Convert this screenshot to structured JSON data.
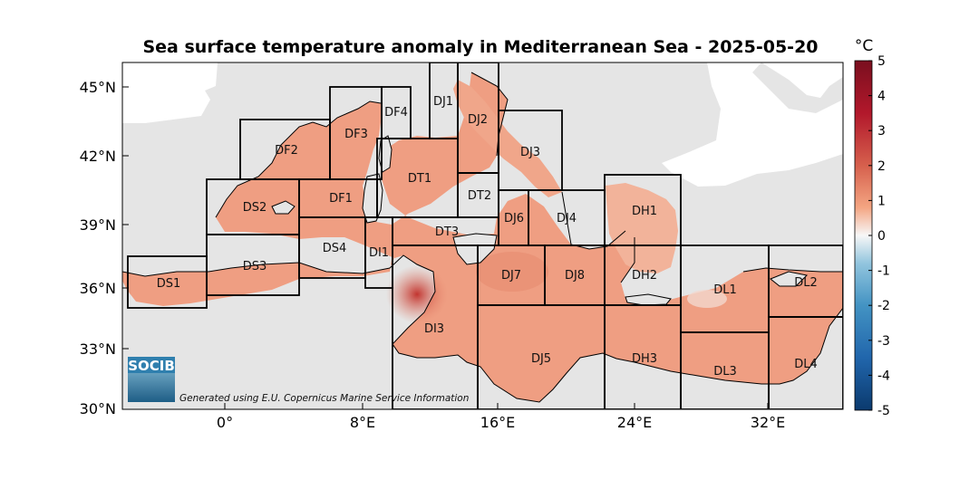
{
  "title": "Sea surface temperature anomaly in Mediterranean Sea - 2025-05-20",
  "units": "°C",
  "colorbar": {
    "ticks": [
      "5",
      "4",
      "3",
      "2",
      "1",
      "0",
      "-1",
      "-2",
      "-3",
      "-4",
      "-5"
    ],
    "min": -5,
    "max": 5,
    "colors": {
      "high": "#7a0f1f",
      "warm": "#d6604d",
      "light_warm": "#f4a582",
      "neutral": "#f7f7f7",
      "light_cool": "#92c5de",
      "cool": "#4393c3",
      "low": "#0b3a6e"
    }
  },
  "axes": {
    "lat_labels": [
      "45°N",
      "42°N",
      "39°N",
      "36°N",
      "33°N",
      "30°N"
    ],
    "lon_labels": [
      "0°",
      "8°E",
      "16°E",
      "24°E",
      "32°E"
    ]
  },
  "regions": [
    {
      "id": "DS1",
      "label": "DS1"
    },
    {
      "id": "DS2",
      "label": "DS2"
    },
    {
      "id": "DS3",
      "label": "DS3"
    },
    {
      "id": "DS4",
      "label": "DS4"
    },
    {
      "id": "DF1",
      "label": "DF1"
    },
    {
      "id": "DF2",
      "label": "DF2"
    },
    {
      "id": "DF3",
      "label": "DF3"
    },
    {
      "id": "DF4",
      "label": "DF4"
    },
    {
      "id": "DI1",
      "label": "DI1"
    },
    {
      "id": "DI3",
      "label": "DI3"
    },
    {
      "id": "DT1",
      "label": "DT1"
    },
    {
      "id": "DT2",
      "label": "DT2"
    },
    {
      "id": "DT3",
      "label": "DT3"
    },
    {
      "id": "DJ1",
      "label": "DJ1"
    },
    {
      "id": "DJ2",
      "label": "DJ2"
    },
    {
      "id": "DJ3",
      "label": "DJ3"
    },
    {
      "id": "DJ4",
      "label": "DJ4"
    },
    {
      "id": "DJ5",
      "label": "DJ5"
    },
    {
      "id": "DJ6",
      "label": "DJ6"
    },
    {
      "id": "DJ7",
      "label": "DJ7"
    },
    {
      "id": "DJ8",
      "label": "DJ8"
    },
    {
      "id": "DH1",
      "label": "DH1"
    },
    {
      "id": "DH2",
      "label": "DH2"
    },
    {
      "id": "DH3",
      "label": "DH3"
    },
    {
      "id": "DL1",
      "label": "DL1"
    },
    {
      "id": "DL2",
      "label": "DL2"
    },
    {
      "id": "DL3",
      "label": "DL3"
    },
    {
      "id": "DL4",
      "label": "DL4"
    }
  ],
  "credit": "Generated using E.U. Copernicus Marine Service Information",
  "logo_text": "SOCIB",
  "map_colors": {
    "land_grid": "#e5e5e5",
    "europe_outside": "#ffffff",
    "sea_anomaly": "#ef9e82",
    "sea_anomaly_dark": "#e4826a",
    "hotspot": "#c83a36",
    "grid_line": "#000000"
  }
}
